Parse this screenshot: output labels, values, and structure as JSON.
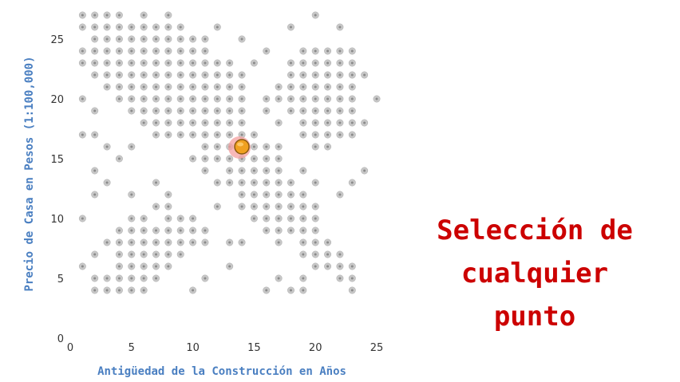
{
  "chart_data": {
    "type": "scatter",
    "title": "",
    "xlabel": "Antigüedad de la Construcción en Años",
    "ylabel": "Precio de Casa en Pesos (1:100,000)",
    "xlim": [
      0,
      25
    ],
    "ylim": [
      0,
      27
    ],
    "xticks": [
      0,
      5,
      10,
      15,
      20,
      25
    ],
    "yticks": [
      0,
      5,
      10,
      15,
      20,
      25
    ],
    "grid": false,
    "point_color": "#c8c8c8",
    "selected_color": "#f0a020",
    "selected_halo_color": "#f4a0a0",
    "rows": [
      {
        "y": 27,
        "x": [
          1,
          2,
          3,
          4,
          6,
          8,
          20
        ]
      },
      {
        "y": 26,
        "x": [
          1,
          2,
          3,
          4,
          5,
          6,
          7,
          8,
          9,
          12,
          18,
          22
        ]
      },
      {
        "y": 25,
        "x": [
          2,
          3,
          4,
          5,
          6,
          7,
          8,
          9,
          10,
          11,
          14
        ]
      },
      {
        "y": 24,
        "x": [
          1,
          2,
          3,
          4,
          5,
          6,
          7,
          8,
          9,
          10,
          11,
          16,
          19,
          20,
          21,
          22,
          23
        ]
      },
      {
        "y": 23,
        "x": [
          1,
          2,
          3,
          4,
          5,
          6,
          7,
          8,
          9,
          10,
          11,
          12,
          13,
          15,
          18,
          19,
          20,
          21,
          22,
          23
        ]
      },
      {
        "y": 22,
        "x": [
          2,
          3,
          4,
          5,
          6,
          7,
          8,
          9,
          10,
          11,
          12,
          13,
          14,
          18,
          19,
          20,
          21,
          22,
          23,
          24
        ]
      },
      {
        "y": 21,
        "x": [
          3,
          4,
          5,
          6,
          7,
          8,
          9,
          10,
          11,
          12,
          13,
          14,
          17,
          18,
          19,
          20,
          21,
          22,
          23
        ]
      },
      {
        "y": 20,
        "x": [
          1,
          4,
          5,
          6,
          7,
          8,
          9,
          10,
          11,
          12,
          13,
          14,
          16,
          17,
          18,
          19,
          20,
          21,
          22,
          23,
          25
        ]
      },
      {
        "y": 19,
        "x": [
          2,
          5,
          6,
          7,
          8,
          9,
          10,
          11,
          12,
          13,
          14,
          16,
          18,
          19,
          20,
          21,
          22,
          23
        ]
      },
      {
        "y": 18,
        "x": [
          6,
          7,
          8,
          9,
          10,
          11,
          12,
          13,
          14,
          17,
          19,
          20,
          21,
          22,
          23,
          24
        ]
      },
      {
        "y": 17,
        "x": [
          1,
          2,
          7,
          8,
          9,
          10,
          11,
          12,
          13,
          14,
          15,
          19,
          20,
          21,
          22,
          23
        ]
      },
      {
        "y": 16,
        "x": [
          3,
          5,
          11,
          12,
          13,
          15,
          16,
          17,
          20,
          21
        ]
      },
      {
        "y": 15,
        "x": [
          4,
          10,
          11,
          12,
          13,
          14,
          15,
          16,
          17
        ]
      },
      {
        "y": 14,
        "x": [
          2,
          11,
          13,
          14,
          15,
          16,
          17,
          19,
          24
        ]
      },
      {
        "y": 13,
        "x": [
          3,
          7,
          12,
          13,
          14,
          15,
          16,
          17,
          18,
          20,
          23
        ]
      },
      {
        "y": 12,
        "x": [
          2,
          5,
          8,
          14,
          15,
          16,
          17,
          18,
          19,
          22
        ]
      },
      {
        "y": 11,
        "x": [
          7,
          8,
          12,
          14,
          15,
          16,
          17,
          18,
          19,
          20
        ]
      },
      {
        "y": 10,
        "x": [
          1,
          5,
          6,
          8,
          9,
          10,
          15,
          16,
          17,
          18,
          19,
          20
        ]
      },
      {
        "y": 9,
        "x": [
          4,
          5,
          6,
          7,
          8,
          9,
          10,
          11,
          16,
          17,
          18,
          19,
          20
        ]
      },
      {
        "y": 8,
        "x": [
          3,
          4,
          5,
          6,
          7,
          8,
          9,
          10,
          11,
          13,
          14,
          17,
          19,
          20,
          21
        ]
      },
      {
        "y": 7,
        "x": [
          2,
          4,
          5,
          6,
          7,
          8,
          9,
          19,
          20,
          21,
          22
        ]
      },
      {
        "y": 6,
        "x": [
          1,
          4,
          5,
          6,
          7,
          8,
          13,
          20,
          21,
          22,
          23
        ]
      },
      {
        "y": 5,
        "x": [
          2,
          3,
          4,
          5,
          6,
          7,
          11,
          17,
          19,
          22,
          23
        ]
      },
      {
        "y": 4,
        "x": [
          2,
          3,
          4,
          5,
          6,
          10,
          16,
          18,
          19,
          23
        ]
      }
    ],
    "selected_point": {
      "x": 14,
      "y": 16
    }
  },
  "caption": {
    "lines": [
      "Selección de",
      "cualquier",
      "punto"
    ]
  }
}
